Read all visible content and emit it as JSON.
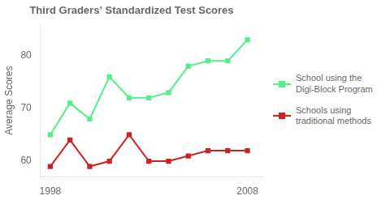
{
  "chart_data": {
    "type": "line",
    "title": "Third Graders’ Standardized Test Scores",
    "ylabel": "Average Scores",
    "x": [
      1998,
      1999,
      2000,
      2001,
      2002,
      2003,
      2004,
      2005,
      2006,
      2007,
      2008
    ],
    "series": [
      {
        "name": "School using the\nDigi-Block Program",
        "color": "#55ee88",
        "marker": "square",
        "line_style": "solid",
        "values": [
          65,
          71,
          68,
          76,
          72,
          72,
          73,
          78,
          79,
          79,
          83
        ]
      },
      {
        "name": "Schools using\ntraditional methods",
        "color": "#cc2222",
        "marker": "square",
        "line_style": "solid",
        "values": [
          59,
          64,
          59,
          60,
          65,
          60,
          60,
          61,
          62,
          62,
          62
        ]
      }
    ],
    "xlim": [
      1997.5,
      2008.8
    ],
    "xticks": [
      1998,
      2008
    ],
    "ylim": [
      57,
      86
    ],
    "yticks": [
      60,
      70,
      80
    ],
    "grid": false,
    "legend": "right"
  }
}
